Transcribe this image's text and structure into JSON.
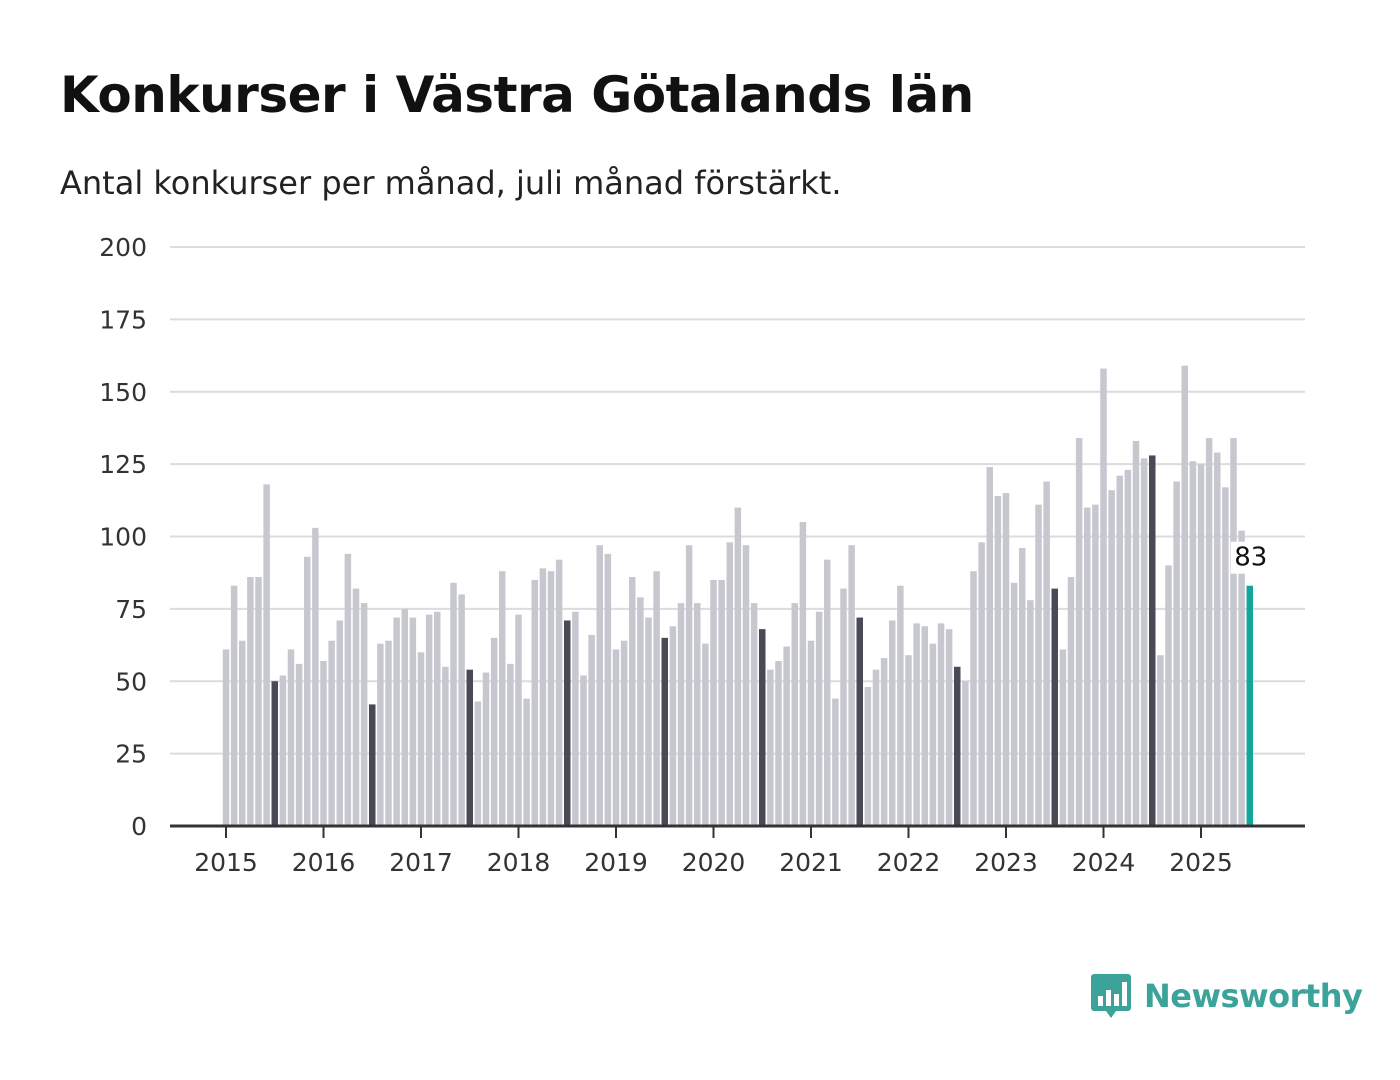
{
  "title": "Konkurser i Västra Götalands län",
  "subtitle": "Antal konkurser per månad, juli månad förstärkt.",
  "brand": {
    "name": "Newsworthy",
    "color": "#3ba39a",
    "icon": "bar-chart-speech-bubble-icon"
  },
  "colors": {
    "normal": "#c7c7d0",
    "highlight_july": "#4a4a57",
    "current": "#13a79a",
    "grid": "#dcdcdf",
    "axis": "#333333"
  },
  "chart_data": {
    "type": "bar",
    "y_ticks": [
      "0",
      "25",
      "50",
      "75",
      "100",
      "125",
      "150",
      "175",
      "200"
    ],
    "ylim": [
      0,
      200
    ],
    "x_ticks": [
      "2015",
      "2016",
      "2017",
      "2018",
      "2019",
      "2020",
      "2021",
      "2022",
      "2023",
      "2024",
      "2025"
    ],
    "grid": true,
    "highlight": "juli",
    "current_label": "83",
    "series": [
      {
        "year": "2015",
        "values": [
          61,
          83,
          64,
          86,
          86,
          118,
          50,
          52,
          61,
          56,
          93,
          103
        ]
      },
      {
        "year": "2016",
        "values": [
          57,
          64,
          71,
          94,
          82,
          77,
          42,
          63,
          64,
          72,
          75,
          72
        ]
      },
      {
        "year": "2017",
        "values": [
          60,
          73,
          74,
          55,
          84,
          80,
          54,
          43,
          53,
          65,
          88,
          56
        ]
      },
      {
        "year": "2018",
        "values": [
          73,
          44,
          85,
          89,
          88,
          92,
          71,
          74,
          52,
          66,
          97,
          94
        ]
      },
      {
        "year": "2019",
        "values": [
          61,
          64,
          86,
          79,
          72,
          88,
          65,
          69,
          77,
          97,
          77,
          63
        ]
      },
      {
        "year": "2020",
        "values": [
          85,
          85,
          98,
          110,
          97,
          77,
          68,
          54,
          57,
          62,
          77,
          105
        ]
      },
      {
        "year": "2021",
        "values": [
          64,
          74,
          92,
          44,
          82,
          97,
          72,
          48,
          54,
          58,
          71,
          83
        ]
      },
      {
        "year": "2022",
        "values": [
          59,
          70,
          69,
          63,
          70,
          68,
          55,
          50,
          88,
          98,
          124,
          114
        ]
      },
      {
        "year": "2023",
        "values": [
          115,
          84,
          96,
          78,
          111,
          119,
          82,
          61,
          86,
          134,
          110,
          111
        ]
      },
      {
        "year": "2024",
        "values": [
          158,
          116,
          121,
          123,
          133,
          127,
          128,
          59,
          90,
          119,
          159,
          126
        ]
      },
      {
        "year": "2025",
        "values": [
          125,
          134,
          129,
          117,
          134,
          102,
          83
        ]
      }
    ]
  }
}
